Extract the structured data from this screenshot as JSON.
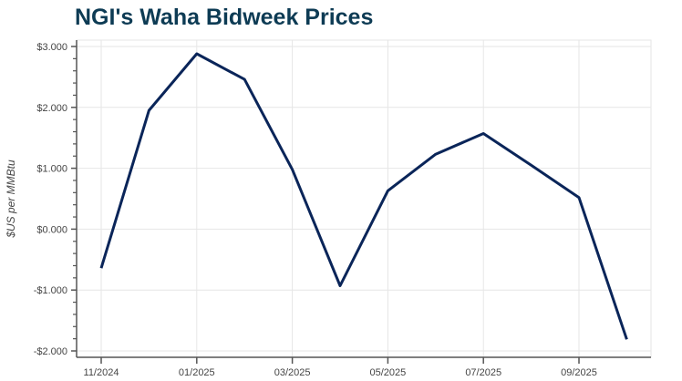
{
  "chart_data": {
    "type": "line",
    "title": "NGI's Waha Bidweek Prices",
    "xlabel": "",
    "ylabel": "$US per MMBtu",
    "x": [
      "11/2024",
      "12/2024",
      "01/2025",
      "02/2025",
      "03/2025",
      "04/2025",
      "05/2025",
      "06/2025",
      "07/2025",
      "08/2025",
      "09/2025",
      "10/2025"
    ],
    "x_tick_labels": [
      "11/2024",
      "01/2025",
      "03/2025",
      "05/2025",
      "07/2025",
      "09/2025"
    ],
    "y_tick_labels": [
      "$3.000",
      "$2.000",
      "$1.000",
      "$0.000",
      "-$1.000",
      "-$2.000"
    ],
    "ylim": [
      -2.0,
      3.0
    ],
    "grid": true,
    "legend": null,
    "series": [
      {
        "name": "Waha Bidweek",
        "color": "#0a2559",
        "values": [
          -0.64,
          1.95,
          2.88,
          2.46,
          0.98,
          -0.93,
          0.63,
          1.23,
          1.57,
          1.05,
          0.52,
          -1.81
        ]
      }
    ]
  },
  "colors": {
    "title": "#0d3b54",
    "line": "#0a2559",
    "grid": "#e6e6e6",
    "axis": "#555555"
  }
}
